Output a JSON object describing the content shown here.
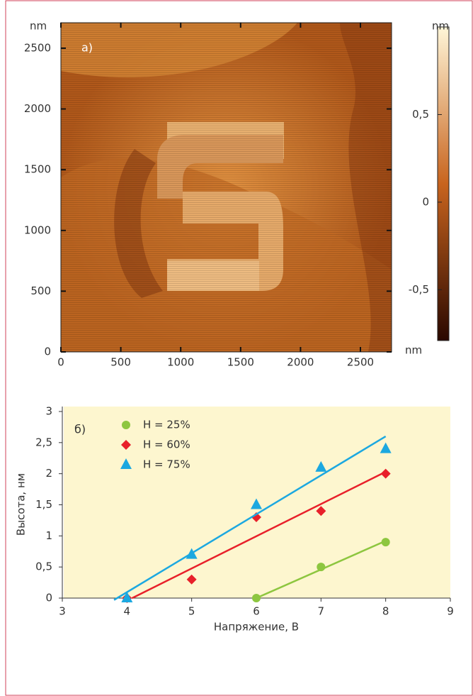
{
  "chart_data": [
    {
      "type": "image",
      "label": "а)",
      "xunit": "nm",
      "yunit": "nm",
      "xlim": [
        0,
        2760
      ],
      "ylim": [
        0,
        2710
      ],
      "xticks": [
        0,
        500,
        1000,
        1500,
        2000,
        2500
      ],
      "yticks": [
        0,
        500,
        1000,
        1500,
        2000,
        2500
      ],
      "cunit": "nm",
      "clim": [
        -0.79,
        1.0
      ],
      "cticks": [
        {
          "value": -0.5,
          "label": "-0,5"
        },
        0,
        {
          "value": 0.5,
          "label": "0,5"
        }
      ],
      "colormap": [
        "#2a0800",
        "#c8641e",
        "#fff6d8"
      ]
    },
    {
      "type": "scatter",
      "label": "б)",
      "xlabel": "Напряжение, В",
      "ylabel": "Высота, нм",
      "xlim": [
        3,
        9
      ],
      "ylim": [
        0,
        3
      ],
      "xticks": [
        3,
        4,
        5,
        6,
        7,
        8,
        9
      ],
      "yticks": [
        0,
        {
          "value": 0.5,
          "label": "0,5"
        },
        1,
        {
          "value": 1.5,
          "label": "1,5"
        },
        2,
        {
          "value": 2.5,
          "label": "2,5"
        },
        3
      ],
      "background": "#fdf6cf",
      "series": [
        {
          "name": "H = 25%",
          "color": "#8dc63f",
          "marker": "circle",
          "x": [
            6,
            7,
            8
          ],
          "values": [
            0,
            0.5,
            0.9
          ],
          "fit": {
            "x": [
              6,
              8
            ],
            "y": [
              0,
              0.92
            ]
          }
        },
        {
          "name": "H = 60%",
          "color": "#e8202a",
          "marker": "diamond",
          "x": [
            4,
            5,
            6,
            7,
            8
          ],
          "values": [
            0,
            0.3,
            1.3,
            1.4,
            2.0
          ],
          "fit": {
            "x": [
              4.08,
              8
            ],
            "y": [
              0,
              2.03
            ]
          }
        },
        {
          "name": "H = 75%",
          "color": "#1ca8e0",
          "marker": "triangle",
          "x": [
            4,
            5,
            6,
            7,
            8
          ],
          "values": [
            0,
            0.7,
            1.5,
            2.1,
            2.4
          ],
          "fit": {
            "x": [
              3.8,
              8
            ],
            "y": [
              -0.03,
              2.6
            ]
          }
        }
      ]
    }
  ]
}
